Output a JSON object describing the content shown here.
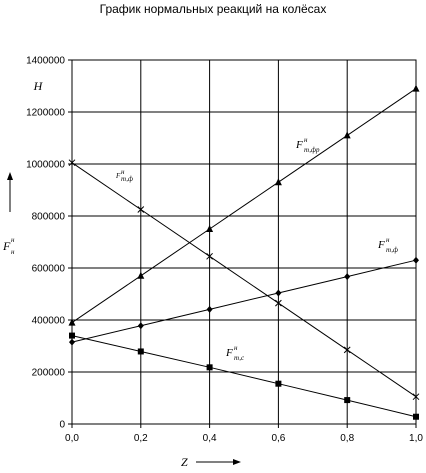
{
  "chart_data": {
    "type": "line",
    "title": "График нормальных реакций на колёсах",
    "ylabel_unit": "Н",
    "ylabel_symbol": "F",
    "ylabel_sup": "н",
    "ylabel_sub": "н",
    "xlabel": "Z",
    "xlim": [
      0,
      1
    ],
    "ylim": [
      0,
      1400000
    ],
    "x_ticks": [
      0,
      0.2,
      0.4,
      0.6,
      0.8,
      1.0
    ],
    "x_tick_labels": [
      "0,0",
      "0,2",
      "0,4",
      "0,6",
      "0,8",
      "1,0"
    ],
    "y_ticks": [
      0,
      200000,
      400000,
      600000,
      800000,
      1000000,
      1200000,
      1400000
    ],
    "y_tick_labels": [
      "0",
      "200000",
      "400000",
      "600000",
      "800000",
      "1000000",
      "1200000",
      "1400000"
    ],
    "grid": true,
    "series": [
      {
        "label_main": "F",
        "label_sup": "н",
        "label_sub": "т,фр",
        "marker": "triangle",
        "x": [
          0,
          0.2,
          0.4,
          0.6,
          0.8,
          1.0
        ],
        "y": [
          390000,
          570000,
          750000,
          930000,
          1110000,
          1290000
        ]
      },
      {
        "label_main": "F",
        "label_sup": "н",
        "label_sub": "т,ф",
        "marker": "diamond",
        "x": [
          0,
          0.2,
          0.4,
          0.6,
          0.8,
          1.0
        ],
        "y": [
          315000,
          378000,
          441000,
          504000,
          567000,
          630000
        ]
      },
      {
        "label_main": "F",
        "label_sup": "н",
        "label_sub": "т,с",
        "marker": "square",
        "x": [
          0,
          0.2,
          0.4,
          0.6,
          0.8,
          1.0
        ],
        "y": [
          340000,
          279000,
          218000,
          155000,
          92000,
          28000
        ]
      },
      {
        "label_main": "F",
        "label_sup": "н",
        "label_sub": "т,ф",
        "marker": "cross",
        "x": [
          0,
          0.2,
          0.4,
          0.6,
          0.8,
          1.0
        ],
        "y": [
          1005000,
          825000,
          645000,
          465000,
          285000,
          105000
        ]
      }
    ]
  }
}
